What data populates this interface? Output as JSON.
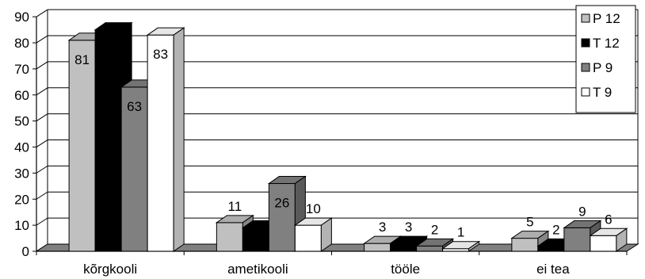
{
  "chart_data": {
    "type": "bar",
    "categories": [
      "kõrgkooli",
      "ametikooli",
      "tööle",
      "ei tea"
    ],
    "series": [
      {
        "name": "P 12",
        "values": [
          81,
          11,
          3,
          5
        ],
        "labels": [
          "81",
          "11",
          "3",
          "5"
        ],
        "color": "#c0c0c0"
      },
      {
        "name": "T 12",
        "values": [
          85,
          9,
          3,
          2
        ],
        "labels": [
          "",
          "",
          "3",
          "2"
        ],
        "color": "#000000"
      },
      {
        "name": "P 9",
        "values": [
          63,
          26,
          2,
          9
        ],
        "labels": [
          "63",
          "26",
          "2",
          "9"
        ],
        "color": "#808080"
      },
      {
        "name": "T 9",
        "values": [
          83,
          10,
          1,
          6
        ],
        "labels": [
          "83",
          "10",
          "1",
          "6"
        ],
        "color": "#ffffff"
      }
    ],
    "yticks": [
      "0",
      "10",
      "20",
      "30",
      "40",
      "50",
      "60",
      "70",
      "80",
      "90"
    ],
    "ylim": [
      0,
      90
    ],
    "grid": true,
    "legend_position": "top-right",
    "title": "",
    "xlabel": "",
    "ylabel": ""
  }
}
